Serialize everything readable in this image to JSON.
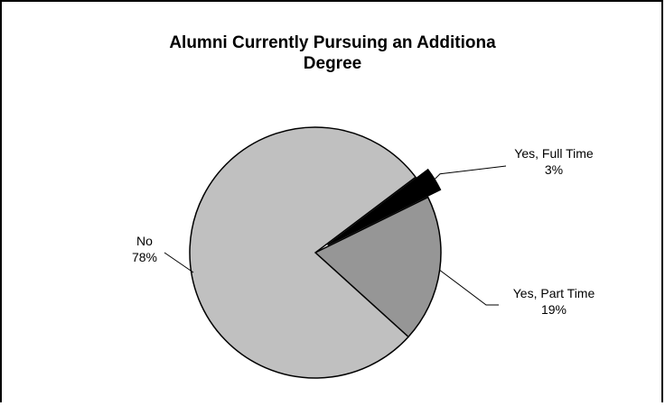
{
  "chart_data": {
    "type": "pie",
    "title": "Alumni Currently Pursuing an Additiona\nDegree",
    "slices": [
      {
        "label": "Yes, Full Time",
        "value": 3,
        "value_label": "3%",
        "color": "#000000"
      },
      {
        "label": "Yes, Part Time",
        "value": 19,
        "value_label": "19%",
        "color": "#969696"
      },
      {
        "label": "No",
        "value": 78,
        "value_label": "78%",
        "color": "#c0c0c0"
      }
    ],
    "exploded": "Yes, Full Time",
    "legend": "none"
  }
}
